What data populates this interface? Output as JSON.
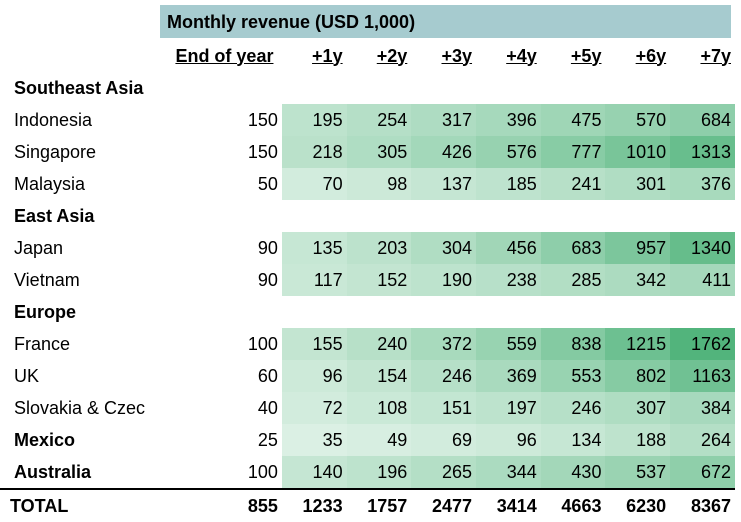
{
  "title": "Monthly revenue (USD 1,000)",
  "headers": [
    "End of year",
    "+1y",
    "+2y",
    "+3y",
    "+4y",
    "+5y",
    "+6y",
    "+7y"
  ],
  "rows": [
    {
      "type": "group",
      "name": "Southeast Asia",
      "values": null
    },
    {
      "type": "row",
      "name": "Indonesia",
      "values": [
        150,
        195,
        254,
        317,
        396,
        475,
        570,
        684
      ]
    },
    {
      "type": "row",
      "name": "Singapore",
      "values": [
        150,
        218,
        305,
        426,
        576,
        777,
        1010,
        1313
      ]
    },
    {
      "type": "row",
      "name": "Malaysia",
      "values": [
        50,
        70,
        98,
        137,
        185,
        241,
        301,
        376
      ]
    },
    {
      "type": "group",
      "name": "East Asia",
      "values": null
    },
    {
      "type": "row",
      "name": "Japan",
      "values": [
        90,
        135,
        203,
        304,
        456,
        683,
        957,
        1340
      ]
    },
    {
      "type": "row",
      "name": "Vietnam",
      "values": [
        90,
        117,
        152,
        190,
        238,
        285,
        342,
        411
      ]
    },
    {
      "type": "group",
      "name": "Europe",
      "values": null
    },
    {
      "type": "row",
      "name": "France",
      "values": [
        100,
        155,
        240,
        372,
        559,
        838,
        1215,
        1762
      ]
    },
    {
      "type": "row",
      "name": "UK",
      "values": [
        60,
        96,
        154,
        246,
        369,
        553,
        802,
        1163
      ]
    },
    {
      "type": "row",
      "name": "Slovakia & Czec",
      "values": [
        40,
        72,
        108,
        151,
        197,
        246,
        307,
        384
      ]
    },
    {
      "type": "group",
      "name": "Mexico",
      "values": [
        25,
        35,
        49,
        69,
        96,
        134,
        188,
        264
      ]
    },
    {
      "type": "group",
      "name": "Australia",
      "values": [
        100,
        140,
        196,
        265,
        344,
        430,
        537,
        672
      ]
    },
    {
      "type": "total",
      "name": "TOTAL",
      "values": [
        855,
        1233,
        1757,
        2477,
        3414,
        4663,
        6230,
        8367
      ]
    }
  ],
  "heatmap": {
    "low_color": "#f2faf5",
    "high_color": "#52b47c",
    "max_value": 1762
  }
}
